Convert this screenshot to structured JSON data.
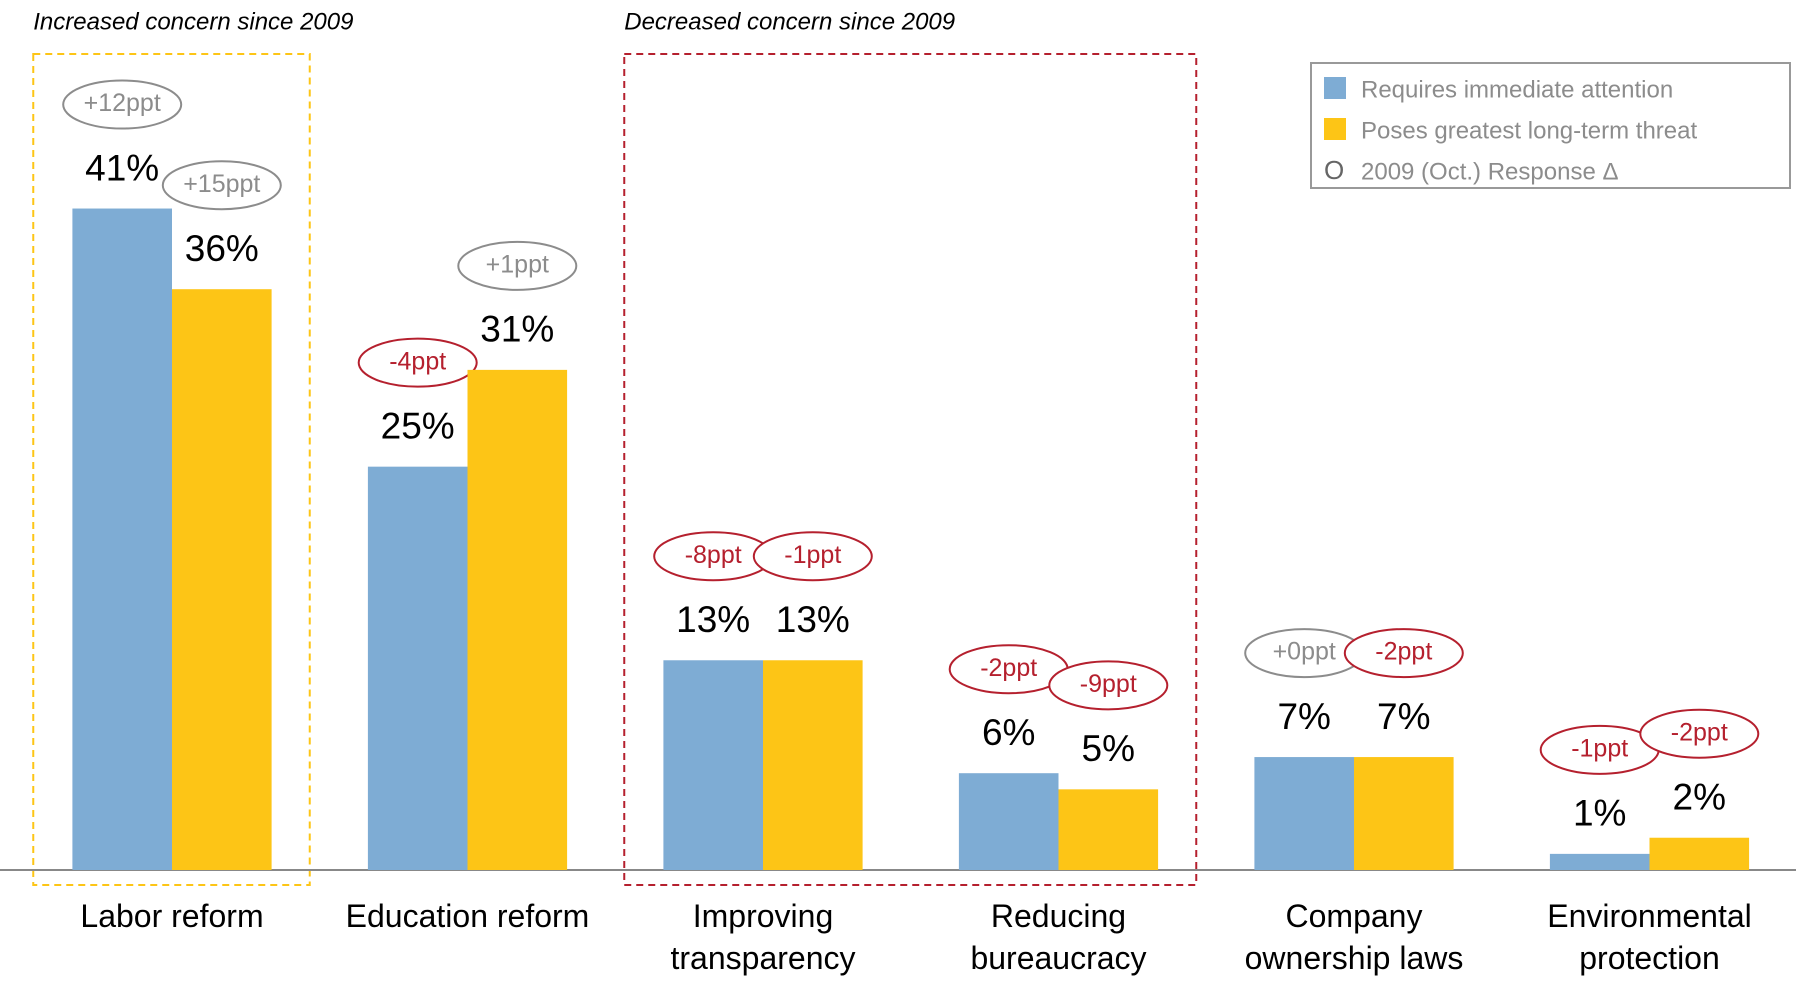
{
  "chart_data": {
    "type": "bar",
    "categories": [
      "Labor reform",
      "Education reform",
      "Improving transparency",
      "Reducing bureaucracy",
      "Company ownership laws",
      "Environmental protection"
    ],
    "series": [
      {
        "name": "Requires immediate attention",
        "color": "#7eacd4",
        "values": [
          41,
          25,
          13,
          6,
          7,
          1
        ],
        "value_labels": [
          "41%",
          "25%",
          "13%",
          "6%",
          "7%",
          "1%"
        ],
        "change_values": [
          12,
          -4,
          -8,
          -2,
          0,
          -1
        ],
        "change_labels": [
          "+12ppt",
          "-4ppt",
          "-8ppt",
          "-2ppt",
          "+0ppt",
          "-1ppt"
        ]
      },
      {
        "name": "Poses greatest long-term threat",
        "color": "#fdc516",
        "values": [
          36,
          31,
          13,
          5,
          7,
          2
        ],
        "value_labels": [
          "36%",
          "31%",
          "13%",
          "5%",
          "7%",
          "2%"
        ],
        "change_values": [
          15,
          1,
          -1,
          -9,
          -2,
          -2
        ],
        "change_labels": [
          "+15ppt",
          "+1ppt",
          "-1ppt",
          "-9ppt",
          "-2ppt",
          "-2ppt"
        ]
      }
    ],
    "legend_extra": {
      "marker": "O",
      "label": "2009 (Oct.) Response Δ"
    },
    "positive_color": "#8c8c8c",
    "negative_color": "#b5202e",
    "annotations": [
      {
        "text": "Increased concern since 2009",
        "color": "#fdc516",
        "from": "Labor reform",
        "to": "Labor reform"
      },
      {
        "text": "Decreased concern since 2009",
        "color": "#b5202e",
        "from": "Improving transparency",
        "to": "Reducing bureaucracy"
      }
    ],
    "ylim": [
      0,
      45
    ],
    "legend": "upper right"
  }
}
